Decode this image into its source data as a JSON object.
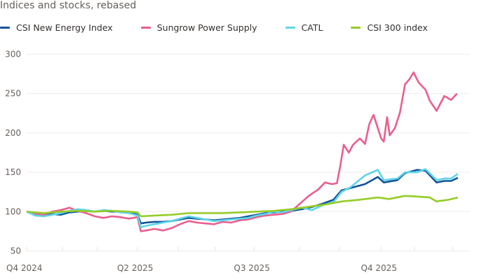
{
  "chart_data": {
    "type": "line",
    "title": "Indices and stocks, rebased",
    "xlabel": "",
    "ylabel": "",
    "x_unit": "weeks since start",
    "ylim": [
      50,
      300
    ],
    "yticks": [
      50,
      100,
      150,
      200,
      250,
      300
    ],
    "xticks": [
      {
        "label": "Q4 2024",
        "x": 0
      },
      {
        "label": "Q2 2025",
        "x": 13
      },
      {
        "label": "Q3 2025",
        "x": 26.7
      },
      {
        "label": "Q4 2025",
        "x": 41.6
      }
    ],
    "minor_ticks": [
      0,
      4.2,
      8.3,
      13,
      17.8,
      22.1,
      26.7,
      32,
      36.7,
      41.6,
      45.5,
      50
    ],
    "xlim": [
      0,
      52
    ],
    "grid": true,
    "legend_position": "top-left",
    "series": [
      {
        "name": "CSI New Energy Index",
        "color": "#0f5499",
        "points": [
          [
            0,
            100
          ],
          [
            1,
            96
          ],
          [
            2,
            95
          ],
          [
            3,
            97
          ],
          [
            4,
            96
          ],
          [
            5,
            99
          ],
          [
            6,
            100
          ],
          [
            7,
            101
          ],
          [
            8,
            100
          ],
          [
            9,
            101
          ],
          [
            10,
            100
          ],
          [
            11,
            100
          ],
          [
            12,
            99
          ],
          [
            13,
            96
          ],
          [
            13.4,
            85
          ],
          [
            14,
            86
          ],
          [
            15,
            87
          ],
          [
            16,
            87
          ],
          [
            17,
            88
          ],
          [
            18,
            90
          ],
          [
            19,
            92
          ],
          [
            20,
            91
          ],
          [
            21,
            90
          ],
          [
            22,
            89
          ],
          [
            23,
            90
          ],
          [
            24,
            91
          ],
          [
            25,
            92
          ],
          [
            26,
            94
          ],
          [
            27,
            96
          ],
          [
            28,
            98
          ],
          [
            29,
            99
          ],
          [
            30,
            100
          ],
          [
            31,
            101
          ],
          [
            32.3,
            103
          ],
          [
            33.5,
            106
          ],
          [
            34.7,
            110
          ],
          [
            36,
            115
          ],
          [
            36.95,
            127
          ],
          [
            38,
            130
          ],
          [
            39.7,
            135
          ],
          [
            41.2,
            144
          ],
          [
            41.9,
            137
          ],
          [
            43.5,
            140
          ],
          [
            44.4,
            149
          ],
          [
            45.8,
            153
          ],
          [
            46.8,
            152
          ],
          [
            48.1,
            137
          ],
          [
            49,
            139
          ],
          [
            49.8,
            139
          ],
          [
            50.6,
            143
          ]
        ]
      },
      {
        "name": "Sungrow Power Supply",
        "color": "#eb5e8d",
        "points": [
          [
            0,
            100
          ],
          [
            1,
            97
          ],
          [
            2,
            96
          ],
          [
            3,
            100
          ],
          [
            4,
            102
          ],
          [
            5,
            105
          ],
          [
            6,
            101
          ],
          [
            7,
            98
          ],
          [
            8,
            94
          ],
          [
            9,
            92
          ],
          [
            10,
            94
          ],
          [
            11,
            93
          ],
          [
            12,
            91
          ],
          [
            13,
            93
          ],
          [
            13.4,
            75
          ],
          [
            14,
            76
          ],
          [
            15,
            78
          ],
          [
            16,
            76
          ],
          [
            17,
            79
          ],
          [
            18,
            84
          ],
          [
            19,
            88
          ],
          [
            20,
            86
          ],
          [
            21,
            85
          ],
          [
            22,
            84
          ],
          [
            23,
            87
          ],
          [
            24,
            86
          ],
          [
            25,
            89
          ],
          [
            26,
            90
          ],
          [
            27,
            93
          ],
          [
            28,
            95
          ],
          [
            29,
            96
          ],
          [
            30,
            97
          ],
          [
            31,
            100
          ],
          [
            33.1,
            120
          ],
          [
            34.2,
            128
          ],
          [
            35,
            137
          ],
          [
            35.8,
            135
          ],
          [
            36.4,
            136
          ],
          [
            36.8,
            158
          ],
          [
            37.2,
            185
          ],
          [
            37.8,
            175
          ],
          [
            38.3,
            185
          ],
          [
            39.1,
            193
          ],
          [
            39.7,
            186
          ],
          [
            40.2,
            211
          ],
          [
            40.7,
            223
          ],
          [
            41.6,
            193
          ],
          [
            41.9,
            189
          ],
          [
            42.3,
            220
          ],
          [
            42.6,
            197
          ],
          [
            43.2,
            206
          ],
          [
            43.8,
            226
          ],
          [
            44.4,
            262
          ],
          [
            44.9,
            268
          ],
          [
            45.4,
            277
          ],
          [
            46,
            264
          ],
          [
            46.8,
            255
          ],
          [
            47.3,
            241
          ],
          [
            48.1,
            228
          ],
          [
            49,
            247
          ],
          [
            49.8,
            242
          ],
          [
            50.5,
            250
          ]
        ]
      },
      {
        "name": "CATL",
        "color": "#5fd4e8",
        "points": [
          [
            0,
            100
          ],
          [
            1,
            95
          ],
          [
            2,
            94
          ],
          [
            3,
            96
          ],
          [
            4,
            98
          ],
          [
            5,
            101
          ],
          [
            6,
            103
          ],
          [
            7,
            102
          ],
          [
            8,
            100
          ],
          [
            9,
            102
          ],
          [
            10,
            101
          ],
          [
            11,
            99
          ],
          [
            12,
            98
          ],
          [
            13,
            95
          ],
          [
            13.4,
            80
          ],
          [
            14,
            82
          ],
          [
            15,
            84
          ],
          [
            16,
            86
          ],
          [
            17,
            88
          ],
          [
            18,
            91
          ],
          [
            19,
            94
          ],
          [
            20,
            92
          ],
          [
            21,
            90
          ],
          [
            22,
            88
          ],
          [
            23,
            89
          ],
          [
            24,
            90
          ],
          [
            25,
            91
          ],
          [
            26,
            92
          ],
          [
            27,
            95
          ],
          [
            28,
            97
          ],
          [
            29,
            100
          ],
          [
            30,
            99
          ],
          [
            31,
            102
          ],
          [
            32.3,
            105
          ],
          [
            33.5,
            102
          ],
          [
            34.7,
            108
          ],
          [
            36,
            112
          ],
          [
            36.95,
            125
          ],
          [
            38,
            131
          ],
          [
            39.7,
            146
          ],
          [
            41.2,
            153
          ],
          [
            41.9,
            140
          ],
          [
            43.5,
            142
          ],
          [
            44.4,
            150
          ],
          [
            45.8,
            150
          ],
          [
            46.8,
            154
          ],
          [
            48.1,
            140
          ],
          [
            49,
            142
          ],
          [
            49.8,
            142
          ],
          [
            50.6,
            148
          ]
        ]
      },
      {
        "name": "CSI 300 index",
        "color": "#96cc28",
        "points": [
          [
            0,
            100
          ],
          [
            2,
            98
          ],
          [
            4,
            100
          ],
          [
            6,
            101
          ],
          [
            8,
            100
          ],
          [
            10,
            101
          ],
          [
            12,
            100
          ],
          [
            13,
            99
          ],
          [
            13.4,
            94
          ],
          [
            15,
            95
          ],
          [
            17,
            96
          ],
          [
            19,
            98
          ],
          [
            21,
            98
          ],
          [
            23,
            98
          ],
          [
            25,
            99
          ],
          [
            27,
            100
          ],
          [
            29,
            101
          ],
          [
            31,
            103
          ],
          [
            33,
            106
          ],
          [
            35,
            109
          ],
          [
            37,
            113
          ],
          [
            39,
            115
          ],
          [
            41.2,
            118
          ],
          [
            42.5,
            116
          ],
          [
            44.4,
            120
          ],
          [
            46,
            119
          ],
          [
            47.3,
            118
          ],
          [
            48.1,
            113
          ],
          [
            49.5,
            115
          ],
          [
            50.6,
            118
          ]
        ]
      }
    ]
  }
}
